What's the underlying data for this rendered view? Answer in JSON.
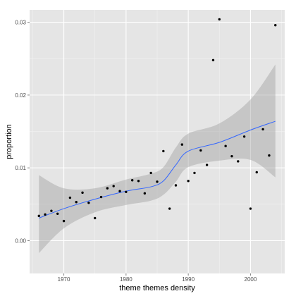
{
  "chart_data": {
    "type": "scatter",
    "title": "",
    "xlabel": "theme themes density",
    "ylabel": "proportion",
    "xlim": [
      1964.5,
      2005.5
    ],
    "ylim": [
      -0.0045,
      0.0317
    ],
    "grid": true,
    "x_ticks": [
      1970,
      1980,
      1990,
      2000
    ],
    "x_tick_labels": [
      "1970",
      "1980",
      "1990",
      "2000"
    ],
    "y_ticks": [
      0.0,
      0.01,
      0.02,
      0.03
    ],
    "y_tick_labels": [
      "0.00",
      "0.01",
      "0.02",
      "0.03"
    ],
    "points": [
      {
        "x": 1966,
        "y": 0.0034
      },
      {
        "x": 1967,
        "y": 0.0036
      },
      {
        "x": 1968,
        "y": 0.0041
      },
      {
        "x": 1969,
        "y": 0.0037
      },
      {
        "x": 1970,
        "y": 0.0027
      },
      {
        "x": 1971,
        "y": 0.0059
      },
      {
        "x": 1972,
        "y": 0.0053
      },
      {
        "x": 1973,
        "y": 0.0066
      },
      {
        "x": 1974,
        "y": 0.0052
      },
      {
        "x": 1975,
        "y": 0.0031
      },
      {
        "x": 1976,
        "y": 0.006
      },
      {
        "x": 1977,
        "y": 0.0072
      },
      {
        "x": 1978,
        "y": 0.0075
      },
      {
        "x": 1979,
        "y": 0.0068
      },
      {
        "x": 1980,
        "y": 0.0067
      },
      {
        "x": 1981,
        "y": 0.0083
      },
      {
        "x": 1982,
        "y": 0.0082
      },
      {
        "x": 1983,
        "y": 0.0065
      },
      {
        "x": 1984,
        "y": 0.0093
      },
      {
        "x": 1985,
        "y": 0.0081
      },
      {
        "x": 1986,
        "y": 0.0123
      },
      {
        "x": 1987,
        "y": 0.0044
      },
      {
        "x": 1988,
        "y": 0.0076
      },
      {
        "x": 1989,
        "y": 0.0132
      },
      {
        "x": 1990,
        "y": 0.0082
      },
      {
        "x": 1991,
        "y": 0.0093
      },
      {
        "x": 1992,
        "y": 0.0124
      },
      {
        "x": 1993,
        "y": 0.0104
      },
      {
        "x": 1994,
        "y": 0.0248
      },
      {
        "x": 1995,
        "y": 0.0304
      },
      {
        "x": 1996,
        "y": 0.013
      },
      {
        "x": 1997,
        "y": 0.0116
      },
      {
        "x": 1998,
        "y": 0.0109
      },
      {
        "x": 1999,
        "y": 0.0143
      },
      {
        "x": 2000,
        "y": 0.0044
      },
      {
        "x": 2001,
        "y": 0.0094
      },
      {
        "x": 2002,
        "y": 0.0153
      },
      {
        "x": 2003,
        "y": 0.0117
      },
      {
        "x": 2004,
        "y": 0.0296
      }
    ],
    "smooth": {
      "x": [
        1966,
        1970,
        1975,
        1980,
        1984,
        1986,
        1988,
        1990,
        1995,
        2000,
        2004
      ],
      "y": [
        0.0031,
        0.0044,
        0.0057,
        0.0068,
        0.0074,
        0.0082,
        0.0104,
        0.0123,
        0.0135,
        0.0152,
        0.0164
      ],
      "lower": [
        -0.0017,
        0.0017,
        0.0039,
        0.0049,
        0.0055,
        0.0063,
        0.0081,
        0.0101,
        0.011,
        0.0111,
        0.0087
      ],
      "upper": [
        0.009,
        0.0072,
        0.0072,
        0.0084,
        0.0092,
        0.0101,
        0.0128,
        0.0147,
        0.0161,
        0.0194,
        0.0242
      ]
    },
    "colors": {
      "panel": "#e5e5e5",
      "grid_major": "#ffffff",
      "grid_minor": "#f2f2f2",
      "point": "#000000",
      "smooth_line": "#3366ff",
      "ribbon": "#999999",
      "tick": "#7f7f7f",
      "tick_label": "#4d4d4d",
      "axis_title": "#000000"
    }
  }
}
